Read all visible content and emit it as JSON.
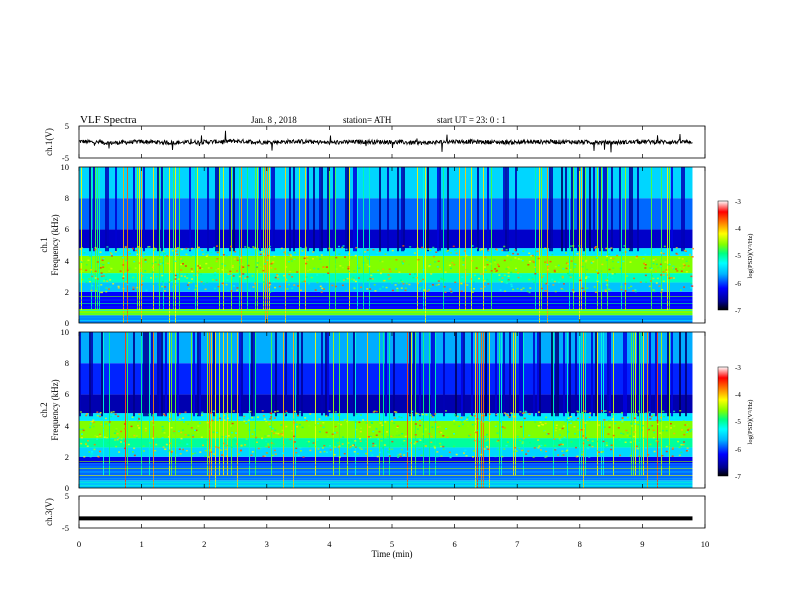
{
  "header": {
    "title": "VLF Spectra",
    "date": "Jan. 8 , 2018",
    "station": "station= ATH",
    "start_ut": "start UT = 23: 0 : 1"
  },
  "colors": {
    "background": "#ffffff",
    "axis": "#000000",
    "spectrogram_base": "#0a2a9a",
    "colormap": [
      "#000000",
      "#000080",
      "#0000ff",
      "#00b4ff",
      "#00ffff",
      "#00ff80",
      "#80ff00",
      "#ffff00",
      "#ff8000",
      "#ff0000",
      "#ffffff"
    ]
  },
  "chart_data": [
    {
      "type": "line",
      "panel": "ch1-waveform",
      "ylabel": "ch.1(V)",
      "ylim": [
        -5,
        5
      ],
      "yticks": [
        "5",
        "-5"
      ],
      "xlim": [
        0,
        10
      ],
      "series": [
        {
          "x": [
            0,
            0.5,
            1,
            1.5,
            2,
            2.5,
            3,
            3.5,
            4,
            4.5,
            5,
            5.5,
            6,
            6.5,
            7,
            7.5,
            8,
            8.5,
            9,
            9.5,
            9.8
          ],
          "values": [
            0.2,
            -0.3,
            0.1,
            -0.2,
            0.0,
            0.3,
            -0.1,
            0.2,
            -0.2,
            0.1,
            0.0,
            -0.3,
            0.2,
            0.0,
            -0.1,
            0.1,
            0.0,
            -0.2,
            0.1,
            0.0,
            0.1
          ]
        }
      ]
    },
    {
      "type": "heatmap",
      "panel": "ch1-spectrogram",
      "ylabel": "Frequency (kHz)",
      "channel_label": "ch.1",
      "ylim": [
        0,
        10
      ],
      "yticks": [
        "0",
        "2",
        "4",
        "6",
        "8",
        "10"
      ],
      "xlim": [
        0,
        10
      ],
      "data_xmax": 9.8,
      "colorbar": {
        "label": "log(PSD)(V²/Hz)",
        "range": [
          -7,
          -3
        ],
        "ticks": [
          "-3",
          "-4",
          "-5",
          "-6",
          "-7"
        ]
      },
      "bands_khz_log_psd": [
        {
          "from": 0.0,
          "to": 0.5,
          "level": -5.8
        },
        {
          "from": 0.5,
          "to": 0.9,
          "level": -4.6
        },
        {
          "from": 0.9,
          "to": 2.0,
          "level": -6.2
        },
        {
          "from": 2.0,
          "to": 2.6,
          "level": -5.6
        },
        {
          "from": 2.6,
          "to": 3.2,
          "level": -5.1
        },
        {
          "from": 3.2,
          "to": 4.3,
          "level": -4.6
        },
        {
          "from": 4.3,
          "to": 4.8,
          "level": -5.4
        },
        {
          "from": 4.8,
          "to": 6.0,
          "level": -6.4
        },
        {
          "from": 6.0,
          "to": 8.0,
          "level": -5.9
        },
        {
          "from": 8.0,
          "to": 10.0,
          "level": -5.5
        }
      ]
    },
    {
      "type": "heatmap",
      "panel": "ch2-spectrogram",
      "ylabel": "Frequency (kHz)",
      "channel_label": "ch.2",
      "ylim": [
        0,
        10
      ],
      "yticks": [
        "0",
        "2",
        "4",
        "6",
        "8",
        "10"
      ],
      "xlim": [
        0,
        10
      ],
      "data_xmax": 9.8,
      "colorbar": {
        "label": "log(PSD)(V²/Hz)",
        "range": [
          -7,
          -3
        ],
        "ticks": [
          "-3",
          "-4",
          "-5",
          "-6",
          "-7"
        ]
      },
      "bands_khz_log_psd": [
        {
          "from": 0.0,
          "to": 0.5,
          "level": -5.6
        },
        {
          "from": 0.5,
          "to": 1.6,
          "level": -5.9
        },
        {
          "from": 1.6,
          "to": 2.0,
          "level": -6.3
        },
        {
          "from": 2.0,
          "to": 2.6,
          "level": -5.5
        },
        {
          "from": 2.6,
          "to": 3.2,
          "level": -5.0
        },
        {
          "from": 3.2,
          "to": 4.3,
          "level": -4.6
        },
        {
          "from": 4.3,
          "to": 4.8,
          "level": -5.4
        },
        {
          "from": 4.8,
          "to": 6.0,
          "level": -6.5
        },
        {
          "from": 6.0,
          "to": 8.0,
          "level": -6.1
        },
        {
          "from": 8.0,
          "to": 10.0,
          "level": -5.7
        }
      ]
    },
    {
      "type": "line",
      "panel": "ch3-waveform",
      "ylabel": "ch.3(V)",
      "ylim": [
        -5,
        5
      ],
      "yticks": [
        "5",
        "-5"
      ],
      "xlim": [
        0,
        10
      ],
      "xlabel": "Time (min)",
      "xticks": [
        "0",
        "1",
        "2",
        "3",
        "4",
        "5",
        "6",
        "7",
        "8",
        "9",
        "10"
      ],
      "series": [
        {
          "x": [
            0,
            9.8
          ],
          "values": [
            -2,
            -2
          ]
        }
      ]
    }
  ]
}
